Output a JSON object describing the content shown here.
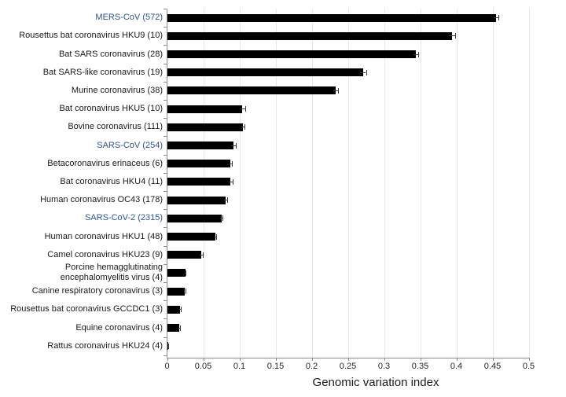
{
  "chart_data": {
    "type": "bar",
    "orientation": "horizontal",
    "title": "",
    "xlabel": "Genomic variation index",
    "xlim": [
      0,
      0.5
    ],
    "xticks": [
      0,
      0.05,
      0.1,
      0.15,
      0.2,
      0.25,
      0.3,
      0.35,
      0.4,
      0.45,
      0.5
    ],
    "xtick_labels": [
      "0",
      "0.05",
      "0.1",
      "0.15",
      "0.2",
      "0.25",
      "0.3",
      "0.35",
      "0.4",
      "0.45",
      "0.5"
    ],
    "grid": "vertical-light",
    "legend": "none",
    "bar_color": "#000000",
    "highlight_label_color": "#2e5491",
    "highlighted_indices": [
      0,
      7,
      11
    ],
    "categories": [
      "MERS-CoV (572)",
      "Rousettus bat coronavirus HKU9 (10)",
      "Bat SARS coronavirus (28)",
      "Bat SARS-like coronavirus (19)",
      "Murine coronavirus (38)",
      "Bat coronavirus HKU5 (10)",
      "Bovine coronavirus (111)",
      "SARS-CoV (254)",
      "Betacoronavirus erinaceus (6)",
      "Bat coronavirus HKU4 (11)",
      "Human coronavirus OC43 (178)",
      "SARS-CoV-2 (2315)",
      "Human coronavirus HKU1 (48)",
      "Camel coronavirus HKU23 (9)",
      "Porcine hemagglutinating\nencephalomyelitis virus (4)",
      "Canine respiratory coronavirus (3)",
      "Rousettus bat coronavirus GCCDC1 (3)",
      "Equine coronavirus (4)",
      "Rattus coronavirus HKU24 (4)"
    ],
    "values": [
      0.455,
      0.394,
      0.344,
      0.271,
      0.233,
      0.104,
      0.105,
      0.092,
      0.088,
      0.088,
      0.081,
      0.075,
      0.067,
      0.047,
      0.025,
      0.024,
      0.018,
      0.017,
      0.001
    ],
    "errors": [
      0.003,
      0.004,
      0.003,
      0.004,
      0.003,
      0.004,
      0.002,
      0.003,
      0.002,
      0.003,
      0.002,
      0.002,
      0.001,
      0.002,
      0.001,
      0.001,
      0.001,
      0.001,
      0.0005
    ]
  }
}
